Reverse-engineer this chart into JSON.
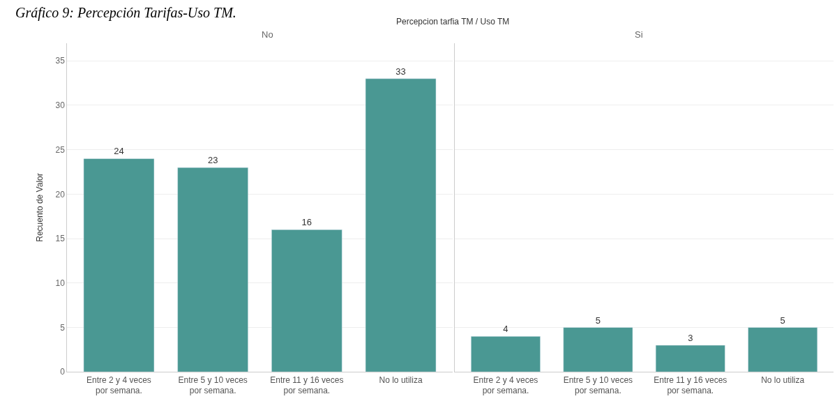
{
  "chart_data": [
    {
      "type": "bar",
      "title": "No",
      "annotations": [
        "Gráfico 9: Percepción Tarifas-Uso TM.",
        "Percepcion tarfia TM / Uso TM"
      ],
      "ylabel": "Recuento de Valor",
      "categories": [
        "Entre 2 y 4 veces por semana.",
        "Entre 5 y 10 veces por semana.",
        "Entre 11 y 16 veces por semana.",
        "No lo utiliza"
      ],
      "values": [
        24,
        23,
        16,
        33
      ],
      "color": "#4a9893",
      "data_labels": true,
      "ylim": [
        0,
        37
      ],
      "yticks": [
        0,
        5,
        10,
        15,
        20,
        25,
        30,
        35
      ],
      "grid": "y"
    },
    {
      "type": "bar",
      "title": "Si",
      "categories": [
        "Entre 2 y 4 veces por semana.",
        "Entre 5 y 10 veces por semana.",
        "Entre 11 y 16 veces por semana.",
        "No lo utiliza"
      ],
      "values": [
        4,
        5,
        3,
        5
      ],
      "color": "#4a9893",
      "data_labels": true,
      "ylim": [
        0,
        37
      ],
      "yticks": [
        0,
        5,
        10,
        15,
        20,
        25,
        30,
        35
      ],
      "grid": "y",
      "tick_labels": "x"
    }
  ]
}
